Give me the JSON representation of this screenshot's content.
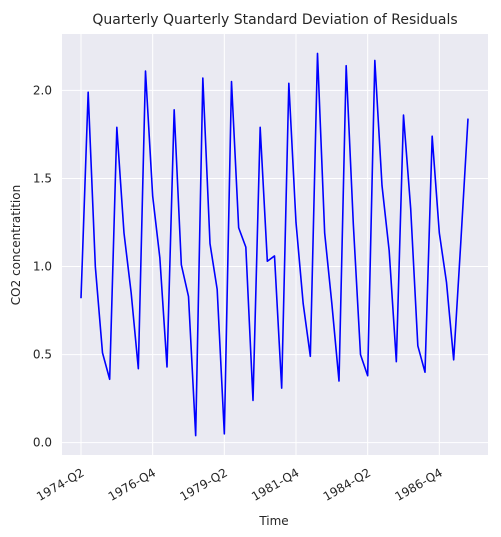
{
  "chart_data": {
    "type": "line",
    "title": "Quarterly Quarterly Standard Deviation of Residuals",
    "xlabel": "Time",
    "ylabel": "CO2 concentratition",
    "ylim": [
      -0.07,
      2.32
    ],
    "yticks": [
      0.0,
      0.5,
      1.0,
      1.5,
      2.0
    ],
    "ytick_labels": [
      "0.0",
      "0.5",
      "1.0",
      "1.5",
      "2.0"
    ],
    "xtick_labels": [
      "1974-Q2",
      "1976-Q4",
      "1979-Q2",
      "1981-Q4",
      "1984-Q2",
      "1986-Q4"
    ],
    "grid": true,
    "line_color": "#0000ff",
    "background_color": "#eaeaf2",
    "series": [
      {
        "x": [
          "1974-Q2",
          "1974-Q3",
          "1974-Q4",
          "1975-Q1",
          "1975-Q2",
          "1975-Q3",
          "1975-Q4",
          "1976-Q1",
          "1976-Q2",
          "1976-Q3",
          "1976-Q4",
          "1977-Q1",
          "1977-Q2",
          "1977-Q3",
          "1977-Q4",
          "1978-Q1",
          "1978-Q2",
          "1978-Q3",
          "1978-Q4",
          "1979-Q1",
          "1979-Q2",
          "1979-Q3",
          "1979-Q4",
          "1980-Q1",
          "1980-Q2",
          "1980-Q3",
          "1980-Q4",
          "1981-Q1",
          "1981-Q2",
          "1981-Q3",
          "1981-Q4",
          "1982-Q1",
          "1982-Q2",
          "1982-Q3",
          "1982-Q4",
          "1983-Q1",
          "1983-Q2",
          "1983-Q3",
          "1983-Q4",
          "1984-Q1",
          "1984-Q2",
          "1984-Q3",
          "1984-Q4",
          "1985-Q1",
          "1985-Q2",
          "1985-Q3",
          "1985-Q4",
          "1986-Q1",
          "1986-Q2",
          "1986-Q3",
          "1986-Q4",
          "1987-Q1",
          "1987-Q2",
          "1987-Q3",
          "1987-Q4"
        ],
        "values": [
          0.82,
          1.99,
          1.0,
          0.51,
          0.36,
          1.79,
          1.19,
          0.85,
          0.42,
          2.11,
          1.4,
          1.05,
          0.43,
          1.89,
          1.01,
          0.83,
          0.04,
          2.07,
          1.13,
          0.87,
          0.05,
          2.05,
          1.22,
          1.11,
          0.24,
          1.79,
          1.03,
          1.06,
          0.31,
          2.04,
          1.25,
          0.79,
          0.49,
          2.21,
          1.19,
          0.79,
          0.35,
          2.14,
          1.24,
          0.5,
          0.38,
          2.17,
          1.46,
          1.09,
          0.46,
          1.86,
          1.33,
          0.55,
          0.4,
          1.74,
          1.19,
          0.91,
          0.47,
          1.14,
          1.84
        ]
      }
    ]
  }
}
